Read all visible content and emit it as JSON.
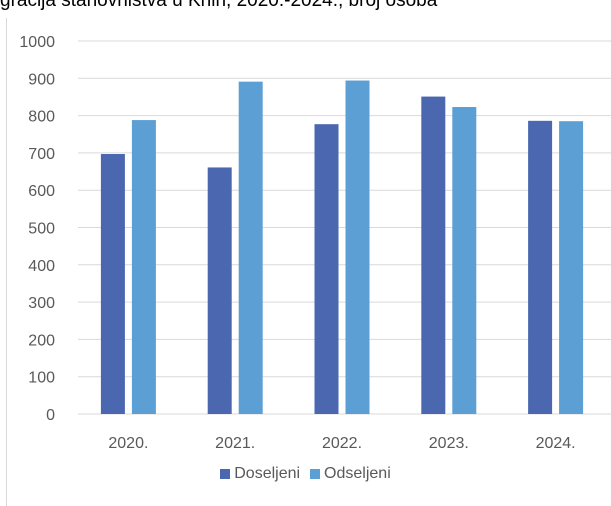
{
  "header": {
    "partial_title": "gracija stanovništva u Knin, 2020.-2024., broj osoba"
  },
  "colors": {
    "series1": "#4a67b0",
    "series2": "#5b9fd4",
    "grid": "#d9d9d9",
    "axis_text": "#595959"
  },
  "chart_data": {
    "type": "bar",
    "title": "",
    "xlabel": "",
    "ylabel": "",
    "categories": [
      "2020.",
      "2021.",
      "2022.",
      "2023.",
      "2024."
    ],
    "series": [
      {
        "name": "Doseljeni",
        "values": [
          697,
          661,
          777,
          851,
          786
        ]
      },
      {
        "name": "Odseljeni",
        "values": [
          788,
          891,
          894,
          823,
          785
        ]
      }
    ],
    "ylim": [
      0,
      1000
    ],
    "yticks": [
      0,
      100,
      200,
      300,
      400,
      500,
      600,
      700,
      800,
      900,
      1000
    ],
    "grid": true,
    "legend_position": "bottom"
  }
}
